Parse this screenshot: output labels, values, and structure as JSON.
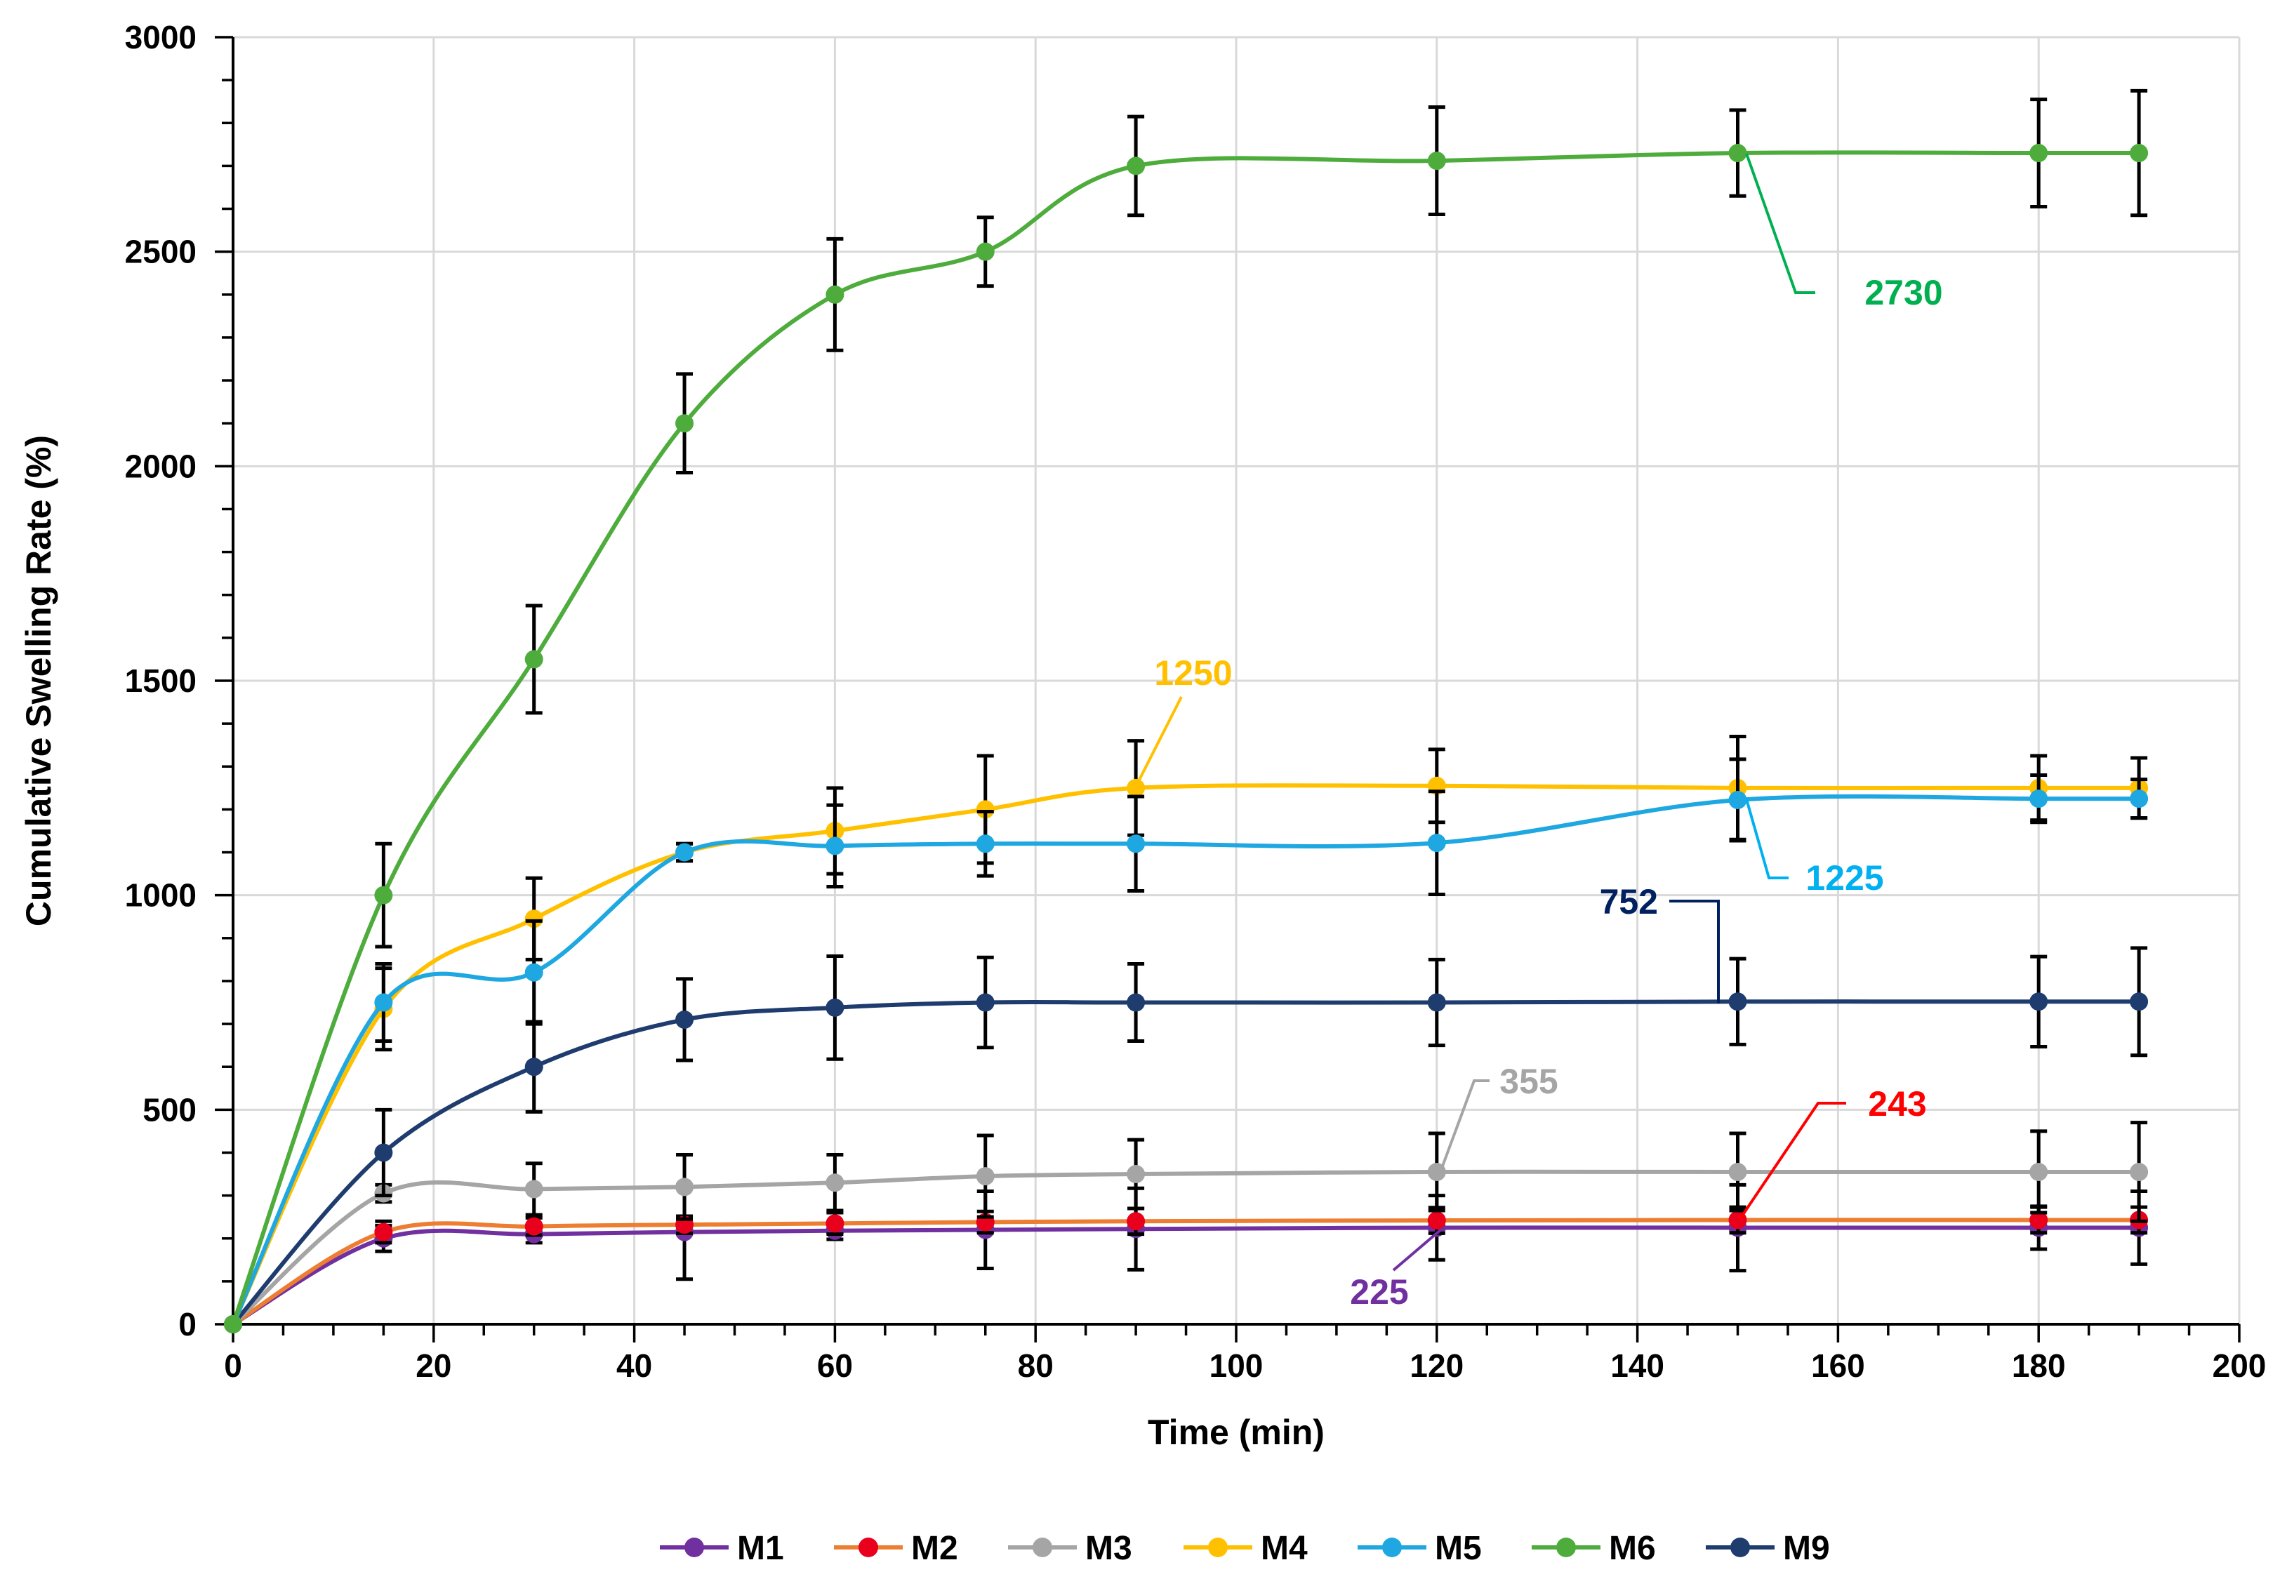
{
  "chart_data": {
    "type": "line",
    "title": "",
    "xlabel": "Time (min)",
    "ylabel": "Cumulative Swelling Rate (%)",
    "xlim": [
      0,
      200
    ],
    "ylim": [
      0,
      3000
    ],
    "xticks": [
      0,
      20,
      40,
      60,
      80,
      100,
      120,
      140,
      160,
      180,
      200
    ],
    "yticks": [
      0,
      500,
      1000,
      1500,
      2000,
      2500,
      3000
    ],
    "xtick_labels": [
      "0",
      "20",
      "40",
      "60",
      "80",
      "100",
      "120",
      "140",
      "160",
      "180",
      "200"
    ],
    "ytick_labels": [
      "0",
      "500",
      "1000",
      "1500",
      "2000",
      "2500",
      "3000"
    ],
    "grid": true,
    "legend_position": "bottom",
    "x": [
      0,
      15,
      30,
      45,
      60,
      75,
      90,
      120,
      150,
      180,
      190
    ],
    "series": [
      {
        "name": "M1",
        "color": "#7030a0",
        "values": [
          0,
          200,
          210,
          215,
          218,
          220,
          222,
          225,
          225,
          225,
          225
        ],
        "errors": [
          0,
          30,
          20,
          110,
          20,
          90,
          95,
          75,
          100,
          50,
          85
        ]
      },
      {
        "name": "M2",
        "color": "#e8001c",
        "line_color": "#ed7d31",
        "values": [
          0,
          215,
          228,
          232,
          235,
          238,
          240,
          242,
          243,
          243,
          243
        ],
        "errors": [
          0,
          25,
          20,
          20,
          25,
          25,
          30,
          30,
          30,
          30,
          30
        ]
      },
      {
        "name": "M3",
        "color": "#a5a5a5",
        "values": [
          0,
          305,
          315,
          320,
          330,
          345,
          350,
          355,
          355,
          355,
          355
        ],
        "errors": [
          0,
          20,
          60,
          75,
          65,
          95,
          80,
          90,
          90,
          95,
          115
        ]
      },
      {
        "name": "M4",
        "color": "#ffc000",
        "values": [
          0,
          735,
          945,
          1100,
          1150,
          1200,
          1250,
          1255,
          1250,
          1250,
          1250
        ],
        "errors": [
          0,
          95,
          95,
          20,
          100,
          125,
          110,
          85,
          120,
          75,
          70
        ]
      },
      {
        "name": "M5",
        "color": "#1ea7e1",
        "values": [
          0,
          750,
          820,
          1100,
          1115,
          1120,
          1120,
          1122,
          1222,
          1225,
          1225
        ],
        "errors": [
          0,
          90,
          120,
          20,
          95,
          75,
          110,
          120,
          95,
          55,
          45
        ]
      },
      {
        "name": "M6",
        "color": "#4eac3c",
        "values": [
          0,
          1000,
          1550,
          2100,
          2400,
          2500,
          2700,
          2712,
          2730,
          2730,
          2730
        ],
        "errors": [
          0,
          120,
          125,
          115,
          130,
          80,
          115,
          125,
          100,
          125,
          145
        ]
      },
      {
        "name": "M9",
        "color": "#1f3c6e",
        "values": [
          0,
          400,
          600,
          710,
          738,
          750,
          750,
          750,
          752,
          752,
          752
        ],
        "errors": [
          0,
          100,
          105,
          95,
          120,
          105,
          90,
          100,
          100,
          105,
          125
        ]
      }
    ],
    "annotations": [
      {
        "text": "2730",
        "series": "M6",
        "color": "#00b050"
      },
      {
        "text": "1250",
        "series": "M4",
        "color": "#ffc000"
      },
      {
        "text": "1225",
        "series": "M5",
        "color": "#00b0f0"
      },
      {
        "text": "752",
        "series": "M9",
        "color": "#002060"
      },
      {
        "text": "355",
        "series": "M3",
        "color": "#a5a5a5"
      },
      {
        "text": "243",
        "series": "M2",
        "color": "#ff0000"
      },
      {
        "text": "225",
        "series": "M1",
        "color": "#7030a0"
      }
    ]
  }
}
